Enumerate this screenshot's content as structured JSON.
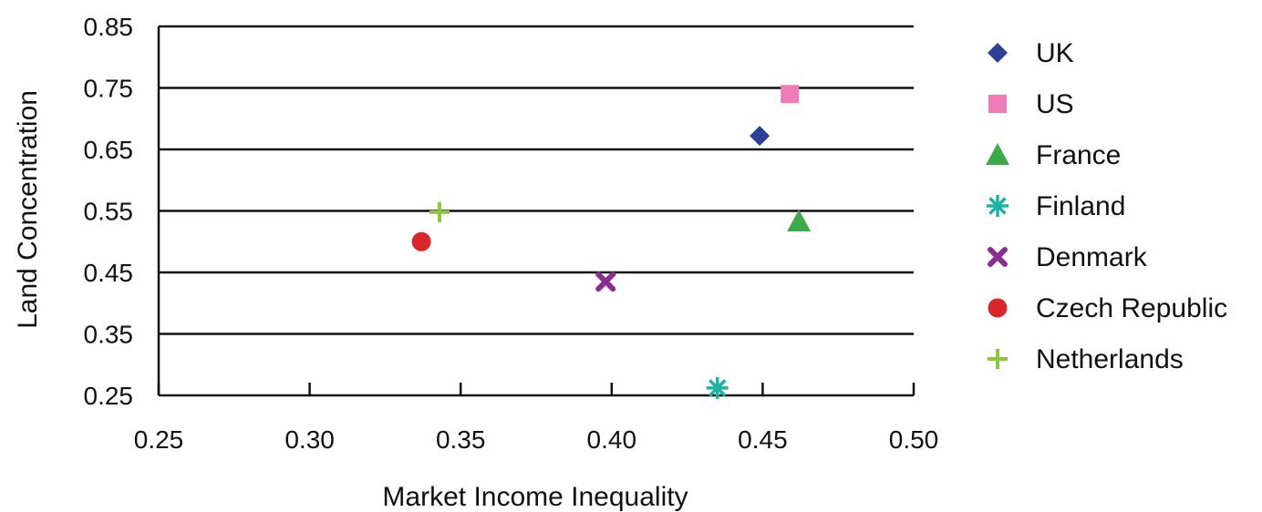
{
  "chart_data": {
    "type": "scatter",
    "title": "",
    "xlabel": "Market Income Inequality",
    "ylabel": "Land Concentration",
    "xlim": [
      0.25,
      0.5
    ],
    "ylim": [
      0.25,
      0.85
    ],
    "x_ticks": [
      "0.25",
      "0.30",
      "0.35",
      "0.40",
      "0.45",
      "0.50"
    ],
    "y_ticks": [
      "0.25",
      "0.35",
      "0.45",
      "0.55",
      "0.65",
      "0.75",
      "0.85"
    ],
    "grid": "horizontal",
    "legend_position": "right",
    "series": [
      {
        "name": "UK",
        "marker": "diamond",
        "color": "#2e3f97",
        "x": 0.449,
        "y": 0.672
      },
      {
        "name": "US",
        "marker": "square",
        "color": "#f07cb6",
        "x": 0.459,
        "y": 0.74
      },
      {
        "name": "France",
        "marker": "triangle",
        "color": "#3daa4a",
        "x": 0.462,
        "y": 0.533
      },
      {
        "name": "Finland",
        "marker": "asterisk",
        "color": "#1fb3a6",
        "x": 0.435,
        "y": 0.262
      },
      {
        "name": "Denmark",
        "marker": "x",
        "color": "#8b2c93",
        "x": 0.398,
        "y": 0.435
      },
      {
        "name": "Czech Republic",
        "marker": "circle",
        "color": "#d8262c",
        "x": 0.337,
        "y": 0.5
      },
      {
        "name": "Netherlands",
        "marker": "plus",
        "color": "#8cc63f",
        "x": 0.343,
        "y": 0.548
      }
    ]
  }
}
